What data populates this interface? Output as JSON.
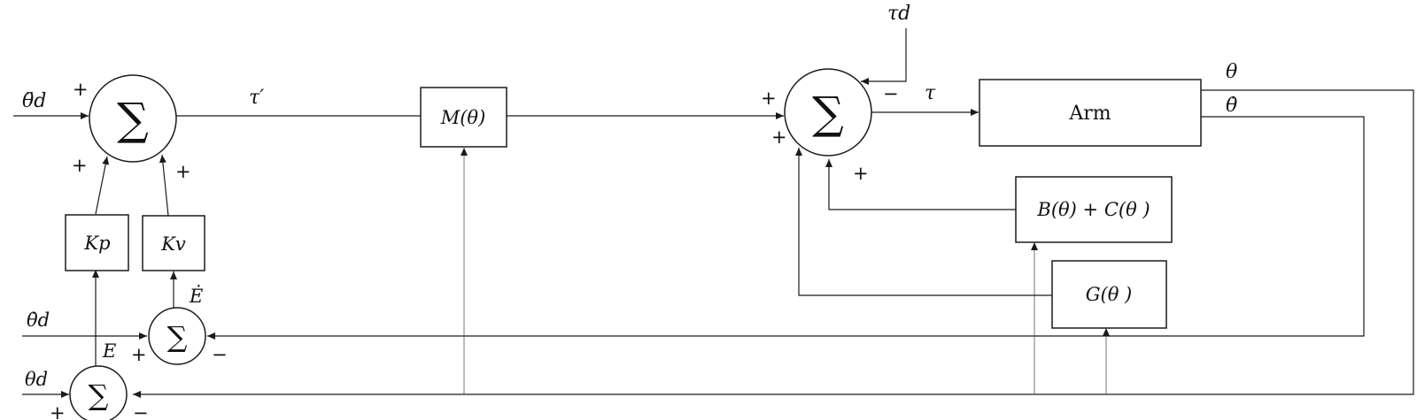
{
  "diagram": {
    "signals": {
      "theta_dd_d": "θ̈d",
      "theta_d_d": "θ̇d",
      "theta_d": "θd",
      "tau_prime": "τ′",
      "tau_d": "τd",
      "tau": "τ",
      "theta_out": "θ",
      "theta_dot_out": "θ̇",
      "E": "E",
      "E_dot": "Ė"
    },
    "blocks": {
      "mass": "M(θ)",
      "arm": "Arm",
      "coriolis": "B(θ) + C(θ )",
      "gravity": "G(θ )",
      "kp": "Kp",
      "kv": "Kv"
    },
    "sum_symbol": "∑",
    "signs": {
      "plus": "+",
      "minus": "−"
    }
  }
}
